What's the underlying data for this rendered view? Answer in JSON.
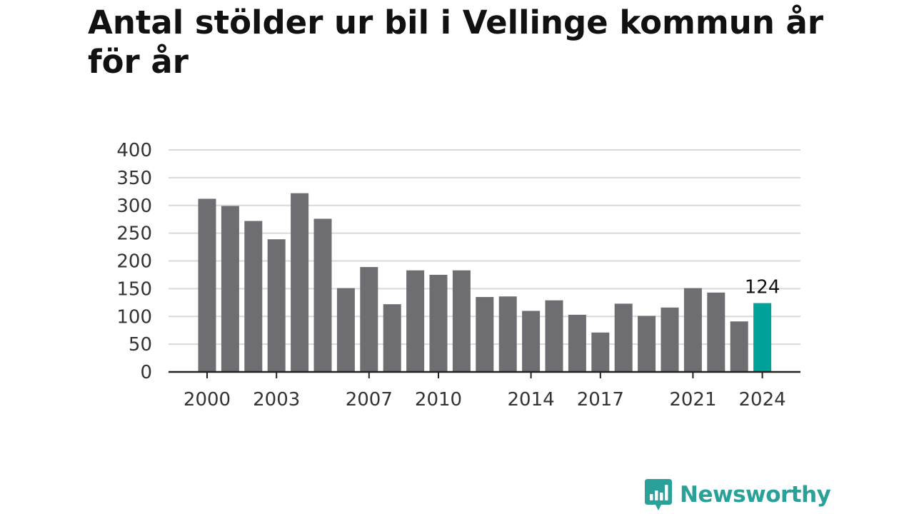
{
  "title": "Antal stölder ur bil i Vellinge kommun år för år",
  "brand": {
    "name": "Newsworthy",
    "color": "#2aa198",
    "icon": "bar-chart-speech-bubble-icon"
  },
  "colors": {
    "bar": "#6e6d72",
    "highlight": "#00a199",
    "grid": "#d9d9d9",
    "axis": "#222222",
    "text": "#333333"
  },
  "chart_data": {
    "type": "bar",
    "title": "Antal stölder ur bil i Vellinge kommun år för år",
    "xlabel": "",
    "ylabel": "",
    "categories": [
      "2000",
      "2001",
      "2002",
      "2003",
      "2004",
      "2005",
      "2006",
      "2007",
      "2008",
      "2009",
      "2010",
      "2011",
      "2012",
      "2013",
      "2014",
      "2015",
      "2016",
      "2017",
      "2018",
      "2019",
      "2020",
      "2021",
      "2022",
      "2023",
      "2024"
    ],
    "values": [
      312,
      299,
      272,
      239,
      322,
      276,
      151,
      189,
      122,
      183,
      175,
      183,
      135,
      136,
      110,
      129,
      103,
      71,
      123,
      101,
      116,
      151,
      143,
      91,
      124
    ],
    "ylim": [
      0,
      400
    ],
    "yticks": [
      0,
      50,
      100,
      150,
      200,
      250,
      300,
      350,
      400
    ],
    "xtick_labels": [
      "2000",
      "2003",
      "2007",
      "2010",
      "2014",
      "2017",
      "2021",
      "2024"
    ],
    "highlight": {
      "category": "2024",
      "label": "124"
    },
    "grid": true,
    "legend": "none"
  }
}
